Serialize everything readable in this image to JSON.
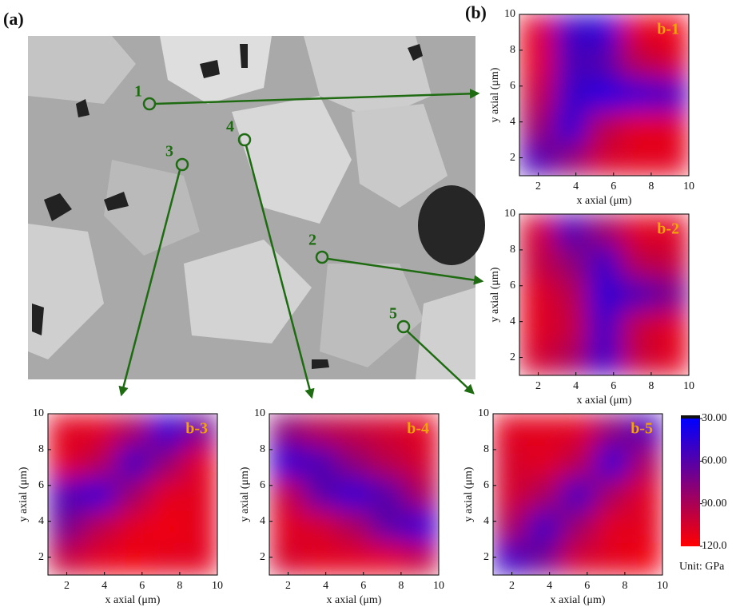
{
  "figure": {
    "panel_a": "(a)",
    "panel_b": "(b)",
    "markers": [
      "1",
      "2",
      "3",
      "4",
      "5"
    ]
  },
  "chart_data": [
    {
      "type": "heatmap",
      "title": "b-1",
      "xlabel": "x axial (μm)",
      "ylabel": "y axial (μm)",
      "xlim": [
        1,
        10
      ],
      "ylim": [
        1,
        10
      ],
      "xticks": [
        2,
        4,
        6,
        8,
        10
      ],
      "yticks": [
        2,
        4,
        6,
        8,
        10
      ],
      "z": [
        [
          110,
          50,
          45,
          110,
          115
        ],
        [
          110,
          55,
          60,
          95,
          105
        ],
        [
          100,
          50,
          40,
          45,
          50
        ],
        [
          85,
          45,
          95,
          110,
          110
        ],
        [
          55,
          80,
          105,
          110,
          110
        ]
      ]
    },
    {
      "type": "heatmap",
      "title": "b-2",
      "xlabel": "x axial (μm)",
      "ylabel": "y axial (μm)",
      "xlim": [
        1,
        10
      ],
      "ylim": [
        1,
        10
      ],
      "xticks": [
        2,
        4,
        6,
        8,
        10
      ],
      "yticks": [
        2,
        4,
        6,
        8,
        10
      ],
      "z": [
        [
          105,
          55,
          85,
          110,
          110
        ],
        [
          100,
          80,
          50,
          95,
          100
        ],
        [
          110,
          95,
          45,
          55,
          70
        ],
        [
          110,
          100,
          50,
          100,
          110
        ],
        [
          105,
          90,
          50,
          100,
          110
        ]
      ]
    },
    {
      "type": "heatmap",
      "title": "b-3",
      "xlabel": "x axial (μm)",
      "ylabel": "y axial (μm)",
      "xlim": [
        1,
        10
      ],
      "ylim": [
        1,
        10
      ],
      "xticks": [
        2,
        4,
        6,
        8,
        10
      ],
      "yticks": [
        2,
        4,
        6,
        8,
        10
      ],
      "z": [
        [
          110,
          110,
          90,
          45,
          70
        ],
        [
          110,
          95,
          50,
          80,
          110
        ],
        [
          55,
          45,
          85,
          110,
          110
        ],
        [
          70,
          95,
          110,
          115,
          110
        ],
        [
          100,
          110,
          115,
          110,
          110
        ]
      ]
    },
    {
      "type": "heatmap",
      "title": "b-4",
      "xlabel": "x axial (μm)",
      "ylabel": "y axial (μm)",
      "xlim": [
        1,
        10
      ],
      "ylim": [
        1,
        10
      ],
      "xticks": [
        2,
        4,
        6,
        8,
        10
      ],
      "yticks": [
        2,
        4,
        6,
        8,
        10
      ],
      "z": [
        [
          80,
          95,
          100,
          105,
          110
        ],
        [
          45,
          55,
          80,
          95,
          105
        ],
        [
          100,
          60,
          45,
          60,
          90
        ],
        [
          110,
          105,
          90,
          60,
          45
        ],
        [
          105,
          110,
          110,
          110,
          100
        ]
      ]
    },
    {
      "type": "heatmap",
      "title": "b-5",
      "xlabel": "x axial (μm)",
      "ylabel": "y axial (μm)",
      "xlim": [
        1,
        10
      ],
      "ylim": [
        1,
        10
      ],
      "xticks": [
        2,
        4,
        6,
        8,
        10
      ],
      "yticks": [
        2,
        4,
        6,
        8,
        10
      ],
      "z": [
        [
          110,
          110,
          110,
          80,
          55
        ],
        [
          105,
          110,
          95,
          45,
          90
        ],
        [
          105,
          90,
          50,
          90,
          110
        ],
        [
          90,
          50,
          85,
          110,
          110
        ],
        [
          50,
          70,
          105,
          110,
          115
        ]
      ]
    }
  ],
  "colorbar": {
    "clim": [
      30,
      120
    ],
    "colors": [
      "#0000ff",
      "#ff0000"
    ],
    "ticks": [
      {
        "value": 30,
        "label": "30.00"
      },
      {
        "value": 60,
        "label": "60.00"
      },
      {
        "value": 90,
        "label": "90.00"
      },
      {
        "value": 120,
        "label": "120.0"
      }
    ],
    "unit": "Unit: GPa"
  }
}
